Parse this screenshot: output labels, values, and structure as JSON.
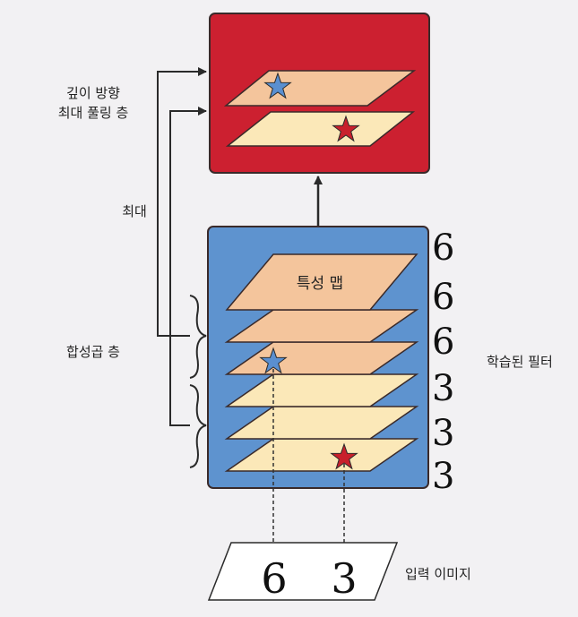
{
  "labels": {
    "depth_pool_line1": "깊이 방향",
    "depth_pool_line2": "최대 풀링 층",
    "max": "최대",
    "conv_layer": "합성곱 층",
    "feature_map": "특성 맵",
    "learned_filters": "학습된 필터",
    "input_image": "입력 이미지"
  },
  "digits": {
    "filters": [
      "6",
      "6",
      "6",
      "3",
      "3",
      "3"
    ],
    "input": [
      "6",
      "3"
    ]
  },
  "colors": {
    "pool_box": "#cc2030",
    "conv_box": "#5e93cf",
    "map_peach": "#f4c59c",
    "map_cream": "#fbe8b8",
    "star_blue": "#5a8fd0",
    "star_red": "#c8202c"
  },
  "icons": {
    "star": "star-icon"
  }
}
